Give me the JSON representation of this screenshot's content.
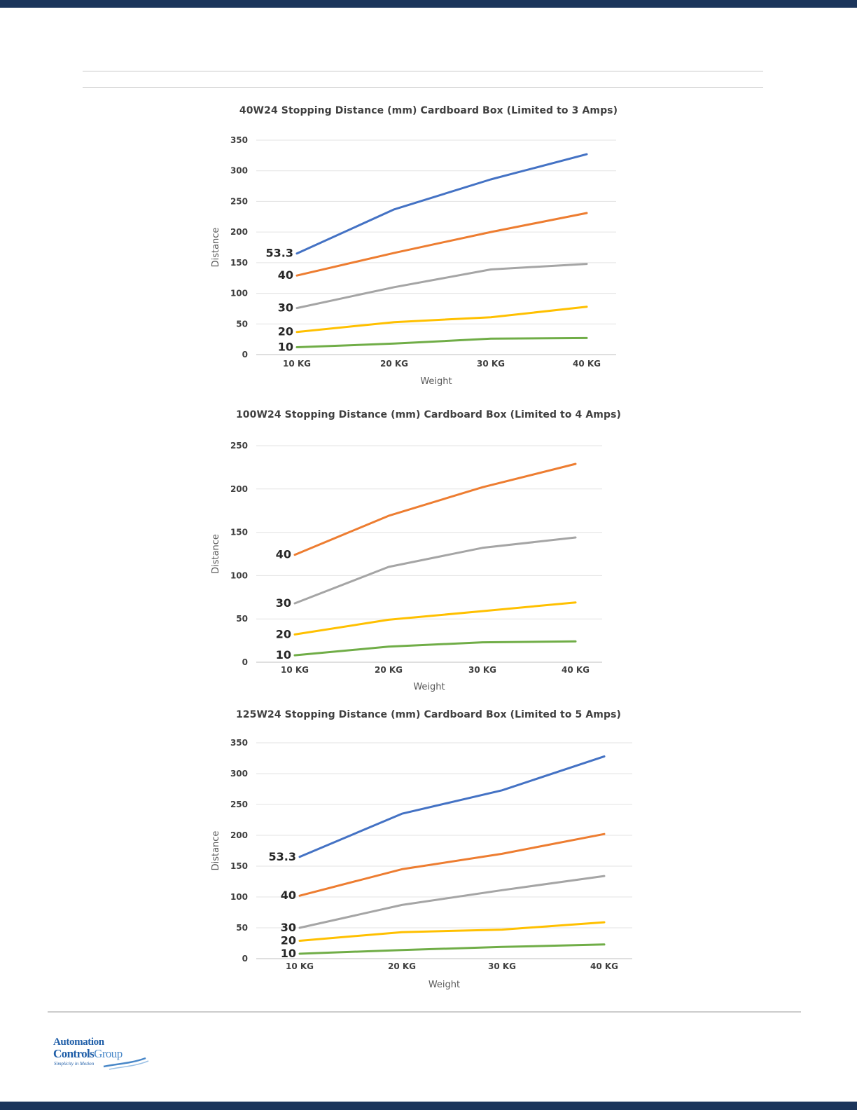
{
  "brand": {
    "name_line1": "Automation",
    "name_line2": "Controls",
    "name_line2_suffix": "Group",
    "tagline": "Simplicity in Motion",
    "primary_color": "#1b355b",
    "accent_color": "#1f5ea8"
  },
  "series_colors": [
    "#4472c4",
    "#ed7d31",
    "#a5a5a5",
    "#ffc000",
    "#70ad47"
  ],
  "chart_data": [
    {
      "type": "line",
      "title": "40W24 Stopping Distance (mm) Cardboard Box (Limited to 3 Amps)",
      "xlabel": "Weight",
      "ylabel": "Distance",
      "categories": [
        "10 KG",
        "20 KG",
        "30 KG",
        "40 KG"
      ],
      "ylim": [
        0,
        350
      ],
      "yticks": [
        "0",
        "50",
        "100",
        "150",
        "200",
        "250",
        "300",
        "350"
      ],
      "grid": true,
      "series": [
        {
          "label": "53.3",
          "values": [
            165,
            237,
            286,
            327
          ]
        },
        {
          "label": "40",
          "values": [
            129,
            166,
            200,
            231
          ]
        },
        {
          "label": "30",
          "values": [
            76,
            110,
            139,
            148
          ]
        },
        {
          "label": "20",
          "values": [
            37,
            53,
            61,
            78
          ]
        },
        {
          "label": "10",
          "values": [
            12,
            18,
            26,
            27
          ]
        }
      ]
    },
    {
      "type": "line",
      "title": "100W24 Stopping Distance (mm) Cardboard Box (Limited to 4 Amps)",
      "xlabel": "Weight",
      "ylabel": "Distance",
      "categories": [
        "10 KG",
        "20 KG",
        "30 KG",
        "40 KG"
      ],
      "ylim": [
        0,
        250
      ],
      "yticks": [
        "0",
        "50",
        "100",
        "150",
        "200",
        "250"
      ],
      "grid": true,
      "series": [
        {
          "label": "40",
          "values": [
            124,
            169,
            202,
            229
          ]
        },
        {
          "label": "30",
          "values": [
            68,
            110,
            132,
            144
          ]
        },
        {
          "label": "20",
          "values": [
            32,
            49,
            59,
            69
          ]
        },
        {
          "label": "10",
          "values": [
            8,
            18,
            23,
            24
          ]
        }
      ]
    },
    {
      "type": "line",
      "title": "125W24 Stopping Distance (mm) Cardboard Box (Limited to 5 Amps)",
      "xlabel": "Weight",
      "ylabel": "Distance",
      "categories": [
        "10 KG",
        "20 KG",
        "30 KG",
        "40 KG"
      ],
      "ylim": [
        0,
        350
      ],
      "yticks": [
        "0",
        "50",
        "100",
        "150",
        "200",
        "250",
        "300",
        "350"
      ],
      "grid": true,
      "series": [
        {
          "label": "53.3",
          "values": [
            165,
            235,
            273,
            328
          ]
        },
        {
          "label": "40",
          "values": [
            102,
            145,
            170,
            202
          ]
        },
        {
          "label": "30",
          "values": [
            50,
            87,
            111,
            134
          ]
        },
        {
          "label": "20",
          "values": [
            29,
            43,
            47,
            59
          ]
        },
        {
          "label": "10",
          "values": [
            8,
            14,
            19,
            23
          ]
        }
      ]
    }
  ]
}
